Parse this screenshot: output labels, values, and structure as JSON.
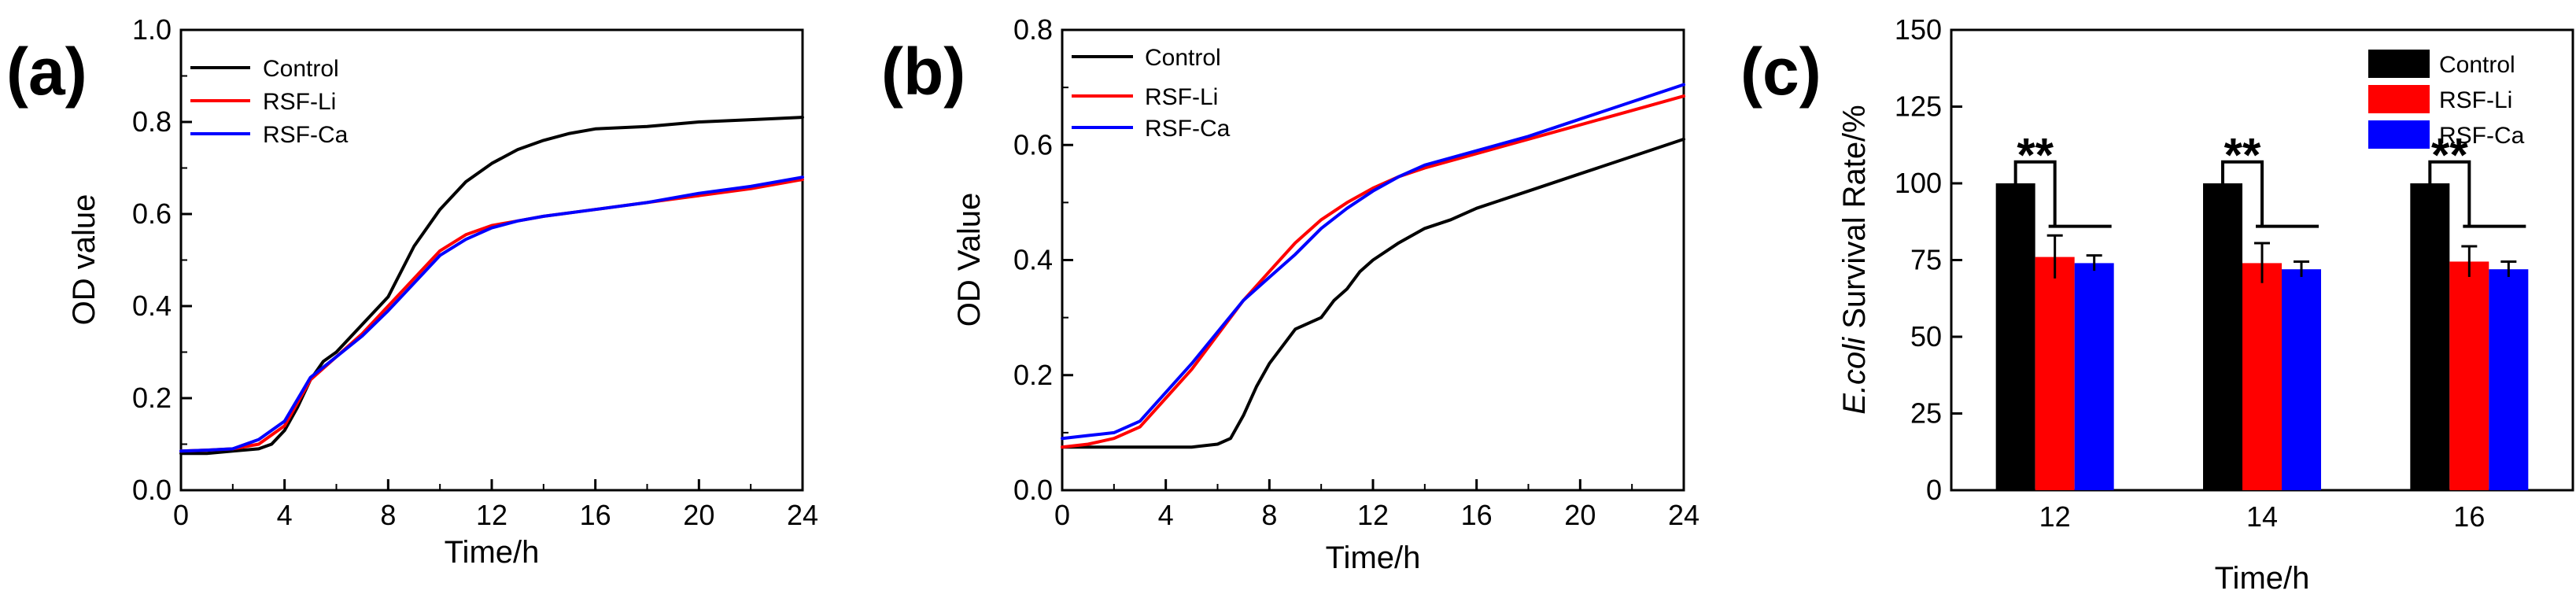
{
  "chart_data": [
    {
      "panel": "(a)",
      "type": "line",
      "xlabel": "Time/h",
      "ylabel": "OD value",
      "xlim": [
        0,
        24
      ],
      "ylim": [
        0.0,
        1.0
      ],
      "xticks": [
        "0",
        "4",
        "8",
        "12",
        "16",
        "20",
        "24"
      ],
      "yticks": [
        "0.0",
        "0.2",
        "0.4",
        "0.6",
        "0.8",
        "1.0"
      ],
      "legend_position": "top-left",
      "series": [
        {
          "name": "Control",
          "color": "#000000",
          "x": [
            0,
            1,
            2,
            3,
            3.5,
            4,
            4.5,
            5,
            5.5,
            6,
            7,
            8,
            9,
            10,
            11,
            12,
            13,
            14,
            15,
            16,
            18,
            20,
            22,
            24
          ],
          "y": [
            0.08,
            0.08,
            0.085,
            0.09,
            0.1,
            0.13,
            0.18,
            0.24,
            0.28,
            0.3,
            0.36,
            0.42,
            0.53,
            0.61,
            0.67,
            0.71,
            0.74,
            0.76,
            0.775,
            0.785,
            0.79,
            0.8,
            0.805,
            0.81
          ]
        },
        {
          "name": "RSF-Li",
          "color": "#ff0000",
          "x": [
            0,
            1,
            2,
            3,
            4,
            5,
            6,
            7,
            8,
            9,
            10,
            11,
            12,
            13,
            14,
            16,
            18,
            20,
            22,
            24
          ],
          "y": [
            0.085,
            0.087,
            0.09,
            0.1,
            0.14,
            0.24,
            0.29,
            0.34,
            0.4,
            0.46,
            0.52,
            0.555,
            0.575,
            0.585,
            0.595,
            0.61,
            0.625,
            0.64,
            0.655,
            0.675
          ]
        },
        {
          "name": "RSF-Ca",
          "color": "#0000ff",
          "x": [
            0,
            1,
            2,
            3,
            4,
            5,
            6,
            7,
            8,
            9,
            10,
            11,
            12,
            13,
            14,
            16,
            18,
            20,
            22,
            24
          ],
          "y": [
            0.085,
            0.087,
            0.09,
            0.11,
            0.15,
            0.245,
            0.29,
            0.335,
            0.39,
            0.45,
            0.51,
            0.545,
            0.57,
            0.585,
            0.595,
            0.61,
            0.625,
            0.645,
            0.66,
            0.68
          ]
        }
      ]
    },
    {
      "panel": "(b)",
      "type": "line",
      "xlabel": "Time/h",
      "ylabel": "OD Value",
      "xlim": [
        0,
        24
      ],
      "ylim": [
        0.0,
        0.8
      ],
      "xticks": [
        "0",
        "4",
        "8",
        "12",
        "16",
        "20",
        "24"
      ],
      "yticks": [
        "0.0",
        "0.2",
        "0.4",
        "0.6",
        "0.8"
      ],
      "legend_position": "top-left",
      "series": [
        {
          "name": "Control",
          "color": "#000000",
          "x": [
            0,
            2,
            4,
            5,
            6,
            6.5,
            7,
            7.5,
            8,
            8.5,
            9,
            9.5,
            10,
            10.5,
            11,
            11.5,
            12,
            13,
            14,
            15,
            16,
            18,
            20,
            22,
            24
          ],
          "y": [
            0.075,
            0.075,
            0.075,
            0.075,
            0.08,
            0.09,
            0.13,
            0.18,
            0.22,
            0.25,
            0.28,
            0.29,
            0.3,
            0.33,
            0.35,
            0.38,
            0.4,
            0.43,
            0.455,
            0.47,
            0.49,
            0.52,
            0.55,
            0.58,
            0.61
          ]
        },
        {
          "name": "RSF-Li",
          "color": "#ff0000",
          "x": [
            0,
            1,
            2,
            3,
            4,
            5,
            6,
            7,
            8,
            9,
            10,
            11,
            12,
            13,
            14,
            16,
            18,
            20,
            22,
            24
          ],
          "y": [
            0.075,
            0.08,
            0.09,
            0.11,
            0.16,
            0.21,
            0.27,
            0.33,
            0.38,
            0.43,
            0.47,
            0.5,
            0.525,
            0.545,
            0.56,
            0.585,
            0.61,
            0.635,
            0.66,
            0.685
          ]
        },
        {
          "name": "RSF-Ca",
          "color": "#0000ff",
          "x": [
            0,
            1,
            2,
            3,
            4,
            5,
            6,
            7,
            8,
            9,
            10,
            11,
            12,
            13,
            14,
            16,
            18,
            20,
            22,
            24
          ],
          "y": [
            0.09,
            0.095,
            0.1,
            0.12,
            0.17,
            0.22,
            0.275,
            0.33,
            0.37,
            0.41,
            0.455,
            0.49,
            0.52,
            0.545,
            0.565,
            0.59,
            0.615,
            0.645,
            0.675,
            0.705
          ]
        }
      ]
    },
    {
      "panel": "(c)",
      "type": "bar",
      "xlabel": "Time/h",
      "ylabel_italic": "E.coli",
      "ylabel_rest": " Survival Rate/%",
      "ylim": [
        0,
        150
      ],
      "yticks": [
        "0",
        "25",
        "50",
        "75",
        "100",
        "125",
        "150"
      ],
      "categories": [
        "12",
        "14",
        "16"
      ],
      "legend_position": "top-right",
      "significance": "**",
      "series": [
        {
          "name": "Control",
          "color": "#000000",
          "values": [
            100,
            100,
            100
          ],
          "errors": [
            0,
            0,
            0
          ]
        },
        {
          "name": "RSF-Li",
          "color": "#ff0000",
          "values": [
            76,
            74,
            74.5
          ],
          "errors": [
            7,
            6.5,
            5
          ]
        },
        {
          "name": "RSF-Ca",
          "color": "#0000ff",
          "values": [
            74,
            72,
            72
          ],
          "errors": [
            2.5,
            2.5,
            2.5
          ]
        }
      ]
    }
  ]
}
